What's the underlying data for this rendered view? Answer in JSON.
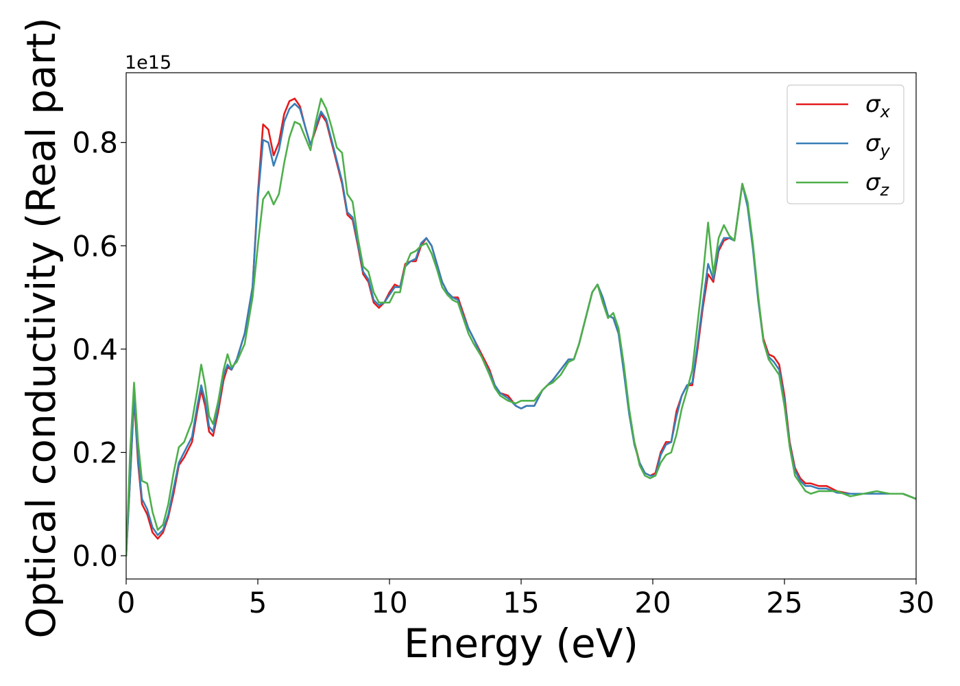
{
  "chart_data": {
    "type": "line",
    "xlabel": "Energy (eV)",
    "ylabel": "Optical conductivity (Real part)",
    "offset_text": "1e15",
    "xlim": [
      0,
      30
    ],
    "ylim": [
      -0.045,
      0.935
    ],
    "xticks": [
      0,
      5,
      10,
      15,
      20,
      25,
      30
    ],
    "yticks": [
      0.0,
      0.2,
      0.4,
      0.6,
      0.8
    ],
    "grid": false,
    "legend_position": "top-right",
    "series": [
      {
        "name": "σx",
        "label_base": "σ",
        "label_sub": "x",
        "color": "#e41a1c",
        "x": [
          0,
          0.15,
          0.3,
          0.45,
          0.6,
          0.8,
          1.0,
          1.2,
          1.4,
          1.6,
          1.8,
          2.0,
          2.2,
          2.5,
          2.7,
          2.85,
          3.0,
          3.15,
          3.3,
          3.5,
          3.7,
          3.85,
          4.0,
          4.2,
          4.5,
          4.8,
          5.0,
          5.2,
          5.4,
          5.6,
          5.8,
          6.0,
          6.2,
          6.4,
          6.6,
          6.8,
          7.0,
          7.2,
          7.4,
          7.6,
          7.8,
          8.0,
          8.2,
          8.4,
          8.6,
          8.8,
          9.0,
          9.2,
          9.4,
          9.6,
          9.8,
          10.0,
          10.2,
          10.4,
          10.6,
          10.8,
          11.0,
          11.2,
          11.4,
          11.6,
          11.8,
          12.0,
          12.2,
          12.4,
          12.6,
          12.8,
          13.0,
          13.2,
          13.5,
          13.8,
          14.0,
          14.2,
          14.5,
          14.8,
          15.0,
          15.2,
          15.5,
          15.8,
          16.0,
          16.2,
          16.5,
          16.8,
          17.0,
          17.2,
          17.5,
          17.7,
          17.9,
          18.1,
          18.3,
          18.5,
          18.7,
          18.9,
          19.1,
          19.3,
          19.5,
          19.7,
          19.9,
          20.1,
          20.3,
          20.5,
          20.7,
          20.9,
          21.1,
          21.3,
          21.5,
          21.7,
          21.9,
          22.1,
          22.3,
          22.5,
          22.7,
          22.9,
          23.1,
          23.4,
          23.6,
          23.8,
          24.0,
          24.2,
          24.4,
          24.6,
          24.8,
          25.0,
          25.2,
          25.4,
          25.6,
          25.8,
          26.0,
          26.3,
          26.6,
          27.0,
          27.5,
          28.0,
          28.5,
          29.0,
          29.5,
          30.0
        ],
        "y": [
          0.0,
          0.15,
          0.305,
          0.18,
          0.1,
          0.08,
          0.045,
          0.033,
          0.045,
          0.075,
          0.12,
          0.175,
          0.19,
          0.22,
          0.28,
          0.32,
          0.29,
          0.24,
          0.232,
          0.28,
          0.34,
          0.365,
          0.36,
          0.38,
          0.43,
          0.52,
          0.7,
          0.835,
          0.825,
          0.775,
          0.8,
          0.855,
          0.88,
          0.885,
          0.87,
          0.83,
          0.795,
          0.825,
          0.855,
          0.84,
          0.8,
          0.76,
          0.72,
          0.66,
          0.65,
          0.6,
          0.545,
          0.53,
          0.49,
          0.48,
          0.49,
          0.51,
          0.525,
          0.52,
          0.565,
          0.57,
          0.57,
          0.6,
          0.615,
          0.6,
          0.565,
          0.53,
          0.51,
          0.5,
          0.5,
          0.47,
          0.44,
          0.42,
          0.39,
          0.36,
          0.33,
          0.315,
          0.31,
          0.29,
          0.285,
          0.29,
          0.29,
          0.32,
          0.33,
          0.34,
          0.36,
          0.38,
          0.38,
          0.41,
          0.47,
          0.51,
          0.525,
          0.5,
          0.465,
          0.46,
          0.43,
          0.36,
          0.28,
          0.22,
          0.18,
          0.16,
          0.155,
          0.16,
          0.2,
          0.22,
          0.22,
          0.28,
          0.31,
          0.33,
          0.33,
          0.4,
          0.48,
          0.545,
          0.53,
          0.59,
          0.61,
          0.615,
          0.61,
          0.72,
          0.68,
          0.6,
          0.5,
          0.42,
          0.39,
          0.385,
          0.37,
          0.31,
          0.22,
          0.17,
          0.15,
          0.14,
          0.14,
          0.135,
          0.135,
          0.125,
          0.12,
          0.12,
          0.12,
          0.12,
          0.12,
          0.11
        ]
      },
      {
        "name": "σy",
        "label_base": "σ",
        "label_sub": "y",
        "color": "#377eb8",
        "x": [
          0,
          0.15,
          0.3,
          0.45,
          0.6,
          0.8,
          1.0,
          1.2,
          1.4,
          1.6,
          1.8,
          2.0,
          2.2,
          2.5,
          2.7,
          2.85,
          3.0,
          3.15,
          3.3,
          3.5,
          3.7,
          3.85,
          4.0,
          4.2,
          4.5,
          4.8,
          5.0,
          5.2,
          5.4,
          5.6,
          5.8,
          6.0,
          6.2,
          6.4,
          6.6,
          6.8,
          7.0,
          7.2,
          7.4,
          7.6,
          7.8,
          8.0,
          8.2,
          8.4,
          8.6,
          8.8,
          9.0,
          9.2,
          9.4,
          9.6,
          9.8,
          10.0,
          10.2,
          10.4,
          10.6,
          10.8,
          11.0,
          11.2,
          11.4,
          11.6,
          11.8,
          12.0,
          12.2,
          12.4,
          12.6,
          12.8,
          13.0,
          13.2,
          13.5,
          13.8,
          14.0,
          14.2,
          14.5,
          14.8,
          15.0,
          15.2,
          15.5,
          15.8,
          16.0,
          16.2,
          16.5,
          16.8,
          17.0,
          17.2,
          17.5,
          17.7,
          17.9,
          18.1,
          18.3,
          18.5,
          18.7,
          18.9,
          19.1,
          19.3,
          19.5,
          19.7,
          19.9,
          20.1,
          20.3,
          20.5,
          20.7,
          20.9,
          21.1,
          21.3,
          21.5,
          21.7,
          21.9,
          22.1,
          22.3,
          22.5,
          22.7,
          22.9,
          23.1,
          23.4,
          23.6,
          23.8,
          24.0,
          24.2,
          24.4,
          24.6,
          24.8,
          25.0,
          25.2,
          25.4,
          25.6,
          25.8,
          26.0,
          26.3,
          26.6,
          27.0,
          27.5,
          28.0,
          28.5,
          29.0,
          29.5,
          30.0
        ],
        "y": [
          0.0,
          0.15,
          0.31,
          0.19,
          0.11,
          0.09,
          0.055,
          0.04,
          0.05,
          0.08,
          0.13,
          0.18,
          0.2,
          0.23,
          0.29,
          0.33,
          0.3,
          0.25,
          0.24,
          0.29,
          0.35,
          0.37,
          0.36,
          0.38,
          0.43,
          0.52,
          0.69,
          0.805,
          0.8,
          0.755,
          0.785,
          0.84,
          0.865,
          0.875,
          0.865,
          0.83,
          0.795,
          0.83,
          0.86,
          0.845,
          0.805,
          0.765,
          0.725,
          0.665,
          0.655,
          0.605,
          0.55,
          0.535,
          0.495,
          0.485,
          0.49,
          0.505,
          0.52,
          0.52,
          0.56,
          0.57,
          0.575,
          0.605,
          0.615,
          0.6,
          0.565,
          0.53,
          0.51,
          0.5,
          0.495,
          0.465,
          0.44,
          0.42,
          0.385,
          0.355,
          0.33,
          0.315,
          0.305,
          0.29,
          0.285,
          0.29,
          0.29,
          0.32,
          0.33,
          0.34,
          0.36,
          0.38,
          0.38,
          0.41,
          0.47,
          0.51,
          0.525,
          0.5,
          0.465,
          0.46,
          0.43,
          0.355,
          0.275,
          0.215,
          0.18,
          0.16,
          0.155,
          0.155,
          0.195,
          0.215,
          0.22,
          0.27,
          0.31,
          0.33,
          0.335,
          0.41,
          0.49,
          0.565,
          0.535,
          0.595,
          0.615,
          0.615,
          0.61,
          0.72,
          0.675,
          0.595,
          0.495,
          0.415,
          0.385,
          0.375,
          0.36,
          0.3,
          0.215,
          0.165,
          0.145,
          0.135,
          0.135,
          0.13,
          0.13,
          0.122,
          0.12,
          0.12,
          0.12,
          0.12,
          0.12,
          0.11
        ]
      },
      {
        "name": "σz",
        "label_base": "σ",
        "label_sub": "z",
        "color": "#4daf4a",
        "x": [
          0,
          0.15,
          0.3,
          0.45,
          0.6,
          0.8,
          1.0,
          1.2,
          1.4,
          1.6,
          1.8,
          2.0,
          2.2,
          2.5,
          2.7,
          2.85,
          3.0,
          3.15,
          3.3,
          3.5,
          3.7,
          3.85,
          4.0,
          4.2,
          4.5,
          4.8,
          5.0,
          5.2,
          5.4,
          5.6,
          5.8,
          6.0,
          6.2,
          6.4,
          6.6,
          6.8,
          7.0,
          7.2,
          7.4,
          7.6,
          7.8,
          8.0,
          8.2,
          8.4,
          8.6,
          8.8,
          9.0,
          9.2,
          9.4,
          9.6,
          9.8,
          10.0,
          10.2,
          10.4,
          10.6,
          10.8,
          11.0,
          11.2,
          11.4,
          11.6,
          11.8,
          12.0,
          12.2,
          12.4,
          12.6,
          12.8,
          13.0,
          13.2,
          13.5,
          13.8,
          14.0,
          14.2,
          14.5,
          14.8,
          15.0,
          15.2,
          15.5,
          15.8,
          16.0,
          16.2,
          16.5,
          16.8,
          17.0,
          17.2,
          17.5,
          17.7,
          17.9,
          18.1,
          18.3,
          18.5,
          18.7,
          18.9,
          19.1,
          19.3,
          19.5,
          19.7,
          19.9,
          20.1,
          20.3,
          20.5,
          20.7,
          20.9,
          21.1,
          21.3,
          21.5,
          21.7,
          21.9,
          22.1,
          22.3,
          22.5,
          22.7,
          22.9,
          23.1,
          23.4,
          23.6,
          23.8,
          24.0,
          24.2,
          24.4,
          24.6,
          24.8,
          25.0,
          25.2,
          25.4,
          25.6,
          25.8,
          26.0,
          26.3,
          26.6,
          27.0,
          27.5,
          28.0,
          28.5,
          29.0,
          29.5,
          30.0
        ],
        "y": [
          0.0,
          0.2,
          0.335,
          0.22,
          0.145,
          0.14,
          0.085,
          0.05,
          0.06,
          0.1,
          0.16,
          0.21,
          0.22,
          0.26,
          0.32,
          0.37,
          0.33,
          0.27,
          0.255,
          0.3,
          0.36,
          0.39,
          0.365,
          0.375,
          0.41,
          0.5,
          0.6,
          0.69,
          0.705,
          0.68,
          0.7,
          0.76,
          0.81,
          0.84,
          0.835,
          0.81,
          0.785,
          0.84,
          0.885,
          0.865,
          0.83,
          0.79,
          0.78,
          0.7,
          0.685,
          0.615,
          0.56,
          0.55,
          0.51,
          0.49,
          0.49,
          0.49,
          0.51,
          0.51,
          0.56,
          0.585,
          0.59,
          0.6,
          0.605,
          0.585,
          0.555,
          0.52,
          0.505,
          0.495,
          0.49,
          0.46,
          0.43,
          0.41,
          0.385,
          0.35,
          0.325,
          0.31,
          0.3,
          0.295,
          0.3,
          0.3,
          0.3,
          0.32,
          0.33,
          0.335,
          0.35,
          0.375,
          0.38,
          0.41,
          0.47,
          0.51,
          0.525,
          0.49,
          0.46,
          0.47,
          0.44,
          0.37,
          0.285,
          0.22,
          0.175,
          0.155,
          0.15,
          0.155,
          0.18,
          0.195,
          0.2,
          0.235,
          0.285,
          0.32,
          0.36,
          0.45,
          0.54,
          0.645,
          0.545,
          0.615,
          0.64,
          0.62,
          0.61,
          0.72,
          0.685,
          0.605,
          0.505,
          0.415,
          0.38,
          0.365,
          0.35,
          0.29,
          0.21,
          0.155,
          0.14,
          0.125,
          0.12,
          0.125,
          0.125,
          0.125,
          0.115,
          0.12,
          0.125,
          0.12,
          0.12,
          0.11
        ]
      }
    ]
  }
}
